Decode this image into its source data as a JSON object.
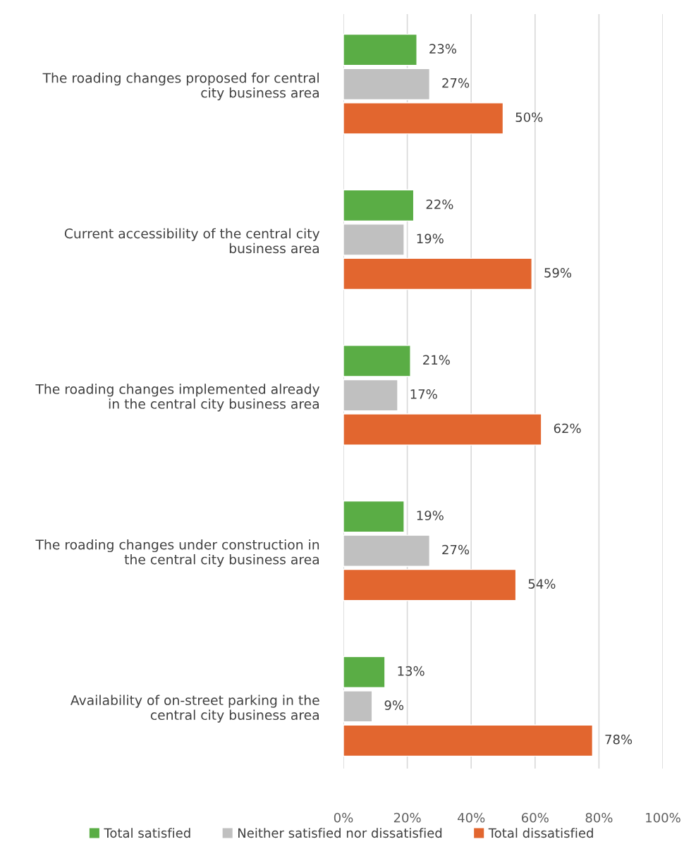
{
  "chart_data": {
    "type": "bar",
    "orientation": "horizontal",
    "categories": [
      "The roading changes proposed for central\ncity business area",
      "Current accessibility of the central city\nbusiness area",
      "The roading changes implemented already\nin the central city business area",
      "The roading changes under construction in\nthe central city business area",
      "Availability of on-street parking in the\ncentral city business area"
    ],
    "series": [
      {
        "name": "Total satisfied",
        "color": "#5aad45",
        "values": [
          23,
          22,
          21,
          19,
          13
        ],
        "value_labels": [
          "23%",
          "22%",
          "21%",
          "19%",
          "13%"
        ]
      },
      {
        "name": "Neither satisfied nor dissatisfied",
        "color": "#c0c0c0",
        "values": [
          27,
          19,
          17,
          27,
          9
        ],
        "value_labels": [
          "27%",
          "19%",
          "17%",
          "27%",
          "9%"
        ]
      },
      {
        "name": "Total dissatisfied",
        "color": "#e2662f",
        "values": [
          50,
          59,
          62,
          54,
          78
        ],
        "value_labels": [
          "50%",
          "59%",
          "62%",
          "54%",
          "78%"
        ]
      }
    ],
    "xlim": [
      0,
      100
    ],
    "xticks": [
      {
        "value": 0,
        "label": "0%"
      },
      {
        "value": 20,
        "label": "20%"
      },
      {
        "value": 40,
        "label": "40%"
      },
      {
        "value": 60,
        "label": "60%"
      },
      {
        "value": 80,
        "label": "80%"
      },
      {
        "value": 100,
        "label": "100%"
      }
    ],
    "grid": "x",
    "legend": "bottom"
  }
}
